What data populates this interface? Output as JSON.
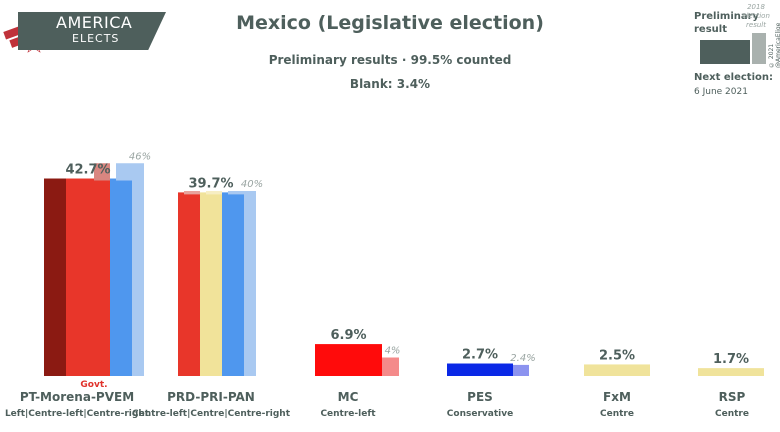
{
  "header": {
    "logo_line1": "AMERICA",
    "logo_line2": "ELECTS",
    "title": "Mexico (Legislative election)",
    "subtitle": "Preliminary results · 99.5% counted",
    "blank": "Blank: 3.4%"
  },
  "legend": {
    "current_label": "Preliminary result",
    "previous_label": "2018 election result",
    "copyright": "© 2021 @AmericaElige",
    "next_election_label": "Next election:",
    "next_election_date": "6 June 2021"
  },
  "colors": {
    "text": "#4e5f5c",
    "previous_text": "#9aa5a2",
    "govt_note": "#e0322b"
  },
  "chart_data": {
    "type": "bar",
    "title": "Mexico (Legislative election)",
    "ylim": [
      0,
      48
    ],
    "series": [
      {
        "name": "Preliminary result",
        "values": [
          42.7,
          39.7,
          6.9,
          2.7,
          2.5,
          1.7
        ]
      },
      {
        "name": "2018 election result",
        "values": [
          46,
          40,
          4,
          2.4,
          null,
          null
        ]
      }
    ],
    "groups": [
      {
        "name": "PT-Morena-PVEM",
        "ideology": "Left|Centre-left|Centre-right",
        "note": "Govt.",
        "value": 42.7,
        "value_label": "42.7%",
        "prev": 46,
        "prev_label": "46%",
        "colors": [
          "#8b1a12",
          "#e8362a",
          "#e8362a",
          "#4f97ee"
        ],
        "prev_colors": [
          "#d98680",
          "#a9c9f1"
        ]
      },
      {
        "name": "PRD-PRI-PAN",
        "ideology": "Centre-left|Centre|Centre-right",
        "note": "",
        "value": 39.7,
        "value_label": "39.7%",
        "prev": 40,
        "prev_label": "40%",
        "colors": [
          "#e8362a",
          "#f1e39a",
          "#4f97ee"
        ],
        "prev_colors": [
          "#e8a39c",
          "#f7eec3",
          "#a9c9f1"
        ]
      },
      {
        "name": "MC",
        "ideology": "Centre-left",
        "note": "",
        "value": 6.9,
        "value_label": "6.9%",
        "prev": 4,
        "prev_label": "4%",
        "colors": [
          "#ff0b0b"
        ],
        "prev_colors": [
          "#f48a8a"
        ]
      },
      {
        "name": "PES",
        "ideology": "Conservative",
        "note": "",
        "value": 2.7,
        "value_label": "2.7%",
        "prev": 2.4,
        "prev_label": "2.4%",
        "colors": [
          "#0a28e6"
        ],
        "prev_colors": [
          "#8c93ef"
        ]
      },
      {
        "name": "FxM",
        "ideology": "Centre",
        "note": "",
        "value": 2.5,
        "value_label": "2.5%",
        "prev": null,
        "prev_label": "",
        "colors": [
          "#f0e39b"
        ],
        "prev_colors": []
      },
      {
        "name": "RSP",
        "ideology": "Centre",
        "note": "",
        "value": 1.7,
        "value_label": "1.7%",
        "prev": null,
        "prev_label": "",
        "colors": [
          "#f0e39b"
        ],
        "prev_colors": []
      }
    ]
  }
}
